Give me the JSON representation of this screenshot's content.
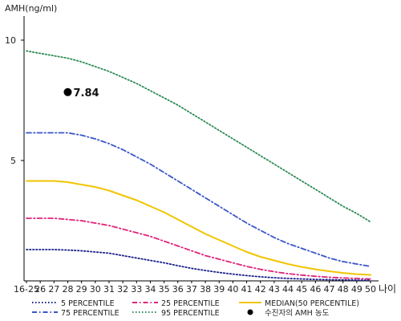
{
  "chart_data": {
    "type": "line",
    "ylabel": "AMH(ng/ml)",
    "xlabel": "나이",
    "ylim": [
      0,
      11
    ],
    "yticks": [
      5,
      10
    ],
    "x_ticks": [
      "16-25",
      "26",
      "27",
      "28",
      "29",
      "30",
      "31",
      "32",
      "33",
      "34",
      "35",
      "36",
      "37",
      "38",
      "39",
      "40",
      "41",
      "42",
      "43",
      "44",
      "45",
      "46",
      "47",
      "48",
      "49",
      "50"
    ],
    "series": [
      {
        "name": "95 PERCENTILE",
        "color": "#2e8b57",
        "style": "dotted",
        "values": [
          9.55,
          9.45,
          9.35,
          9.25,
          9.1,
          8.9,
          8.7,
          8.45,
          8.2,
          7.9,
          7.6,
          7.3,
          6.95,
          6.6,
          6.25,
          5.9,
          5.55,
          5.2,
          4.85,
          4.5,
          4.15,
          3.8,
          3.45,
          3.1,
          2.8,
          2.45
        ]
      },
      {
        "name": "75 PERCENTILE",
        "color": "#3a56c7",
        "style": "dashdot",
        "values": [
          6.15,
          6.15,
          6.15,
          6.15,
          6.05,
          5.9,
          5.7,
          5.45,
          5.15,
          4.85,
          4.5,
          4.15,
          3.8,
          3.45,
          3.1,
          2.75,
          2.4,
          2.1,
          1.8,
          1.55,
          1.35,
          1.15,
          0.95,
          0.8,
          0.7,
          0.6
        ]
      },
      {
        "name": "MEDIAN(50 PERCENTILE)",
        "color": "#f2c400",
        "style": "solid",
        "values": [
          4.15,
          4.15,
          4.15,
          4.1,
          4.0,
          3.9,
          3.75,
          3.55,
          3.35,
          3.1,
          2.85,
          2.55,
          2.25,
          1.95,
          1.7,
          1.45,
          1.2,
          1.0,
          0.85,
          0.7,
          0.58,
          0.48,
          0.4,
          0.33,
          0.28,
          0.25
        ]
      },
      {
        "name": "25 PERCENTILE",
        "color": "#e0237a",
        "style": "dashdot",
        "values": [
          2.6,
          2.6,
          2.6,
          2.55,
          2.5,
          2.4,
          2.3,
          2.15,
          2.0,
          1.85,
          1.65,
          1.45,
          1.25,
          1.05,
          0.9,
          0.75,
          0.6,
          0.48,
          0.38,
          0.3,
          0.24,
          0.19,
          0.15,
          0.12,
          0.1,
          0.08
        ]
      },
      {
        "name": "5 PERCENTILE",
        "color": "#1a1f8a",
        "style": "dotted",
        "values": [
          1.3,
          1.3,
          1.3,
          1.28,
          1.25,
          1.2,
          1.15,
          1.05,
          0.95,
          0.85,
          0.75,
          0.63,
          0.52,
          0.43,
          0.35,
          0.28,
          0.22,
          0.17,
          0.13,
          0.1,
          0.08,
          0.06,
          0.05,
          0.04,
          0.03,
          0.03
        ]
      }
    ],
    "points": [
      {
        "name": "수진자의 AMH 농도",
        "x": "28",
        "y": 7.84,
        "label": "7.84",
        "color": "#000000"
      }
    ],
    "legend": {
      "placement": "bottom"
    }
  },
  "legend_entries": {
    "p5": "5 PERCENTILE",
    "p25": "25 PERCENTILE",
    "median": "MEDIAN(50 PERCENTILE)",
    "p75": "75 PERCENTILE",
    "p95": "95 PERCENTILE",
    "patient": "수진자의 AMH 농도"
  }
}
